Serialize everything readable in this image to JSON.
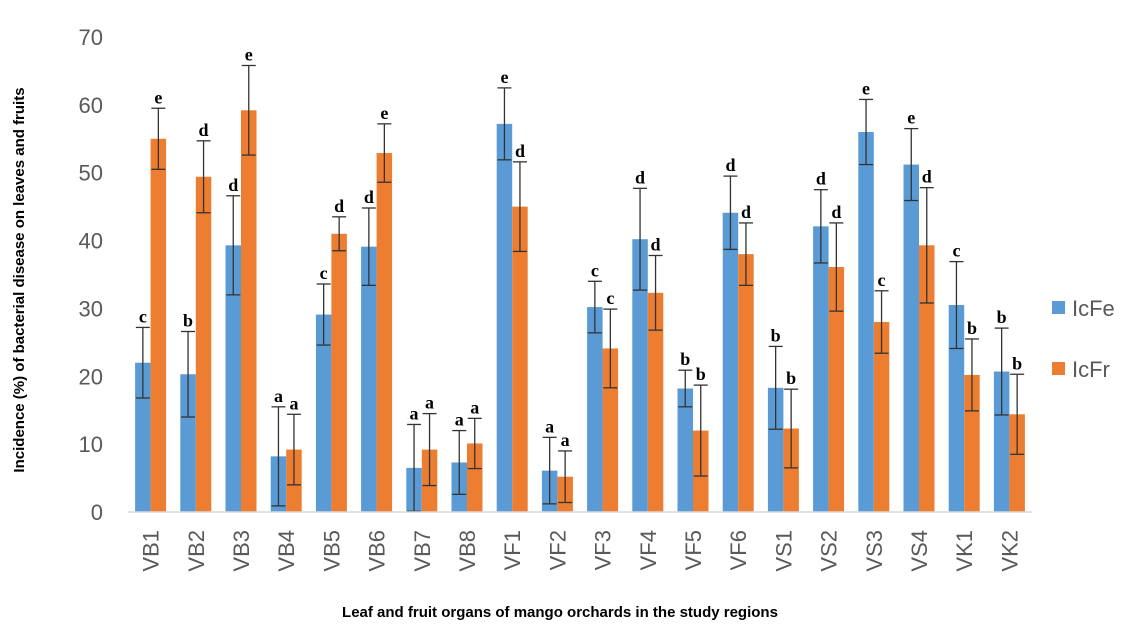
{
  "chart_data": {
    "type": "bar",
    "title": "",
    "xlabel": "Leaf and fruit organs of mango orchards in the study regions",
    "ylabel": "Incidence (%) of bacterial disease on leaves and fruits",
    "ylim": [
      0,
      70
    ],
    "yticks": [
      0,
      10,
      20,
      30,
      40,
      50,
      60,
      70
    ],
    "grid": false,
    "legend_position": "right",
    "categories": [
      "VB1",
      "VB2",
      "VB3",
      "VB4",
      "VB5",
      "VB6",
      "VB7",
      "VB8",
      "VF1",
      "VF2",
      "VF3",
      "VF4",
      "VF5",
      "VF6",
      "VS1",
      "VS2",
      "VS3",
      "VS4",
      "VK1",
      "VK2"
    ],
    "series": [
      {
        "name": "IcFe",
        "color": "#5B9BD5",
        "values": [
          22,
          20.3,
          39.3,
          8.2,
          29.1,
          39.1,
          6.5,
          7.3,
          57.2,
          6.1,
          30.2,
          40.2,
          18.2,
          44.1,
          18.3,
          42.1,
          56,
          51.2,
          30.5,
          20.7
        ],
        "errors": [
          5.2,
          6.3,
          7.3,
          7.3,
          4.5,
          5.7,
          6.4,
          4.7,
          5.3,
          4.9,
          3.8,
          7.5,
          2.7,
          5.4,
          6.1,
          5.4,
          4.8,
          5.3,
          6.4,
          6.4
        ],
        "letters": [
          "c",
          "b",
          "d",
          "a",
          "c",
          "d",
          "a",
          "a",
          "e",
          "a",
          "c",
          "d",
          "b",
          "d",
          "b",
          "d",
          "e",
          "e",
          "c",
          "b"
        ]
      },
      {
        "name": "IcFr",
        "color": "#ED7D31",
        "values": [
          55,
          49.4,
          59.2,
          9.2,
          41,
          52.9,
          9.2,
          10.1,
          45,
          5.2,
          24.1,
          32.3,
          12,
          38,
          12.3,
          36.1,
          28,
          39.3,
          20.2,
          14.4
        ],
        "errors": [
          4.5,
          5.3,
          6.6,
          5.2,
          2.5,
          4.3,
          5.3,
          3.7,
          6.6,
          3.8,
          5.8,
          5.5,
          6.7,
          4.6,
          5.8,
          6.5,
          4.6,
          8.5,
          5.3,
          5.9
        ],
        "letters": [
          "e",
          "d",
          "e",
          "a",
          "d",
          "e",
          "a",
          "a",
          "d",
          "a",
          "c",
          "d",
          "b",
          "d",
          "b",
          "d",
          "c",
          "d",
          "b",
          "b"
        ]
      }
    ]
  }
}
